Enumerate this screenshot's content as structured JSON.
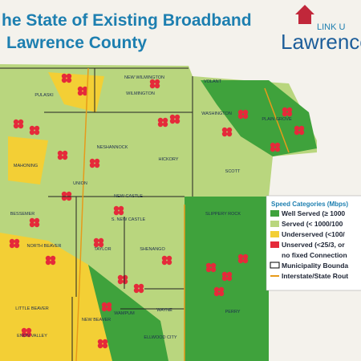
{
  "header": {
    "title_line1": "he State of Existing Broadband",
    "title_line2": "Lawrence County",
    "logo_tag": "LINK U",
    "logo_name": "Lawrence"
  },
  "legend": {
    "title": "Speed Categories (Mbps)",
    "items": [
      "Well Served (≥ 1000",
      "Served (< 1000/100",
      "Underserved (<100/",
      "Unserved (<25/3, or",
      "no fixed Connection",
      "Municipality Bounda",
      "Interstate/State Rout"
    ]
  },
  "municipalities": [
    "NEW WILMINGTON",
    "WILMINGTON",
    "VOLANT",
    "PLAIN GROVE",
    "WASHINGTON",
    "PULASKI",
    "NESHANNOCK",
    "HICKORY",
    "MAHONING",
    "UNION",
    "NEW CASTLE",
    "SCOTT",
    "BESSEMER",
    "S. NEW CASTLE",
    "NORTH BEAVER",
    "TAYLOR",
    "SHENANGO",
    "SLIPPERY ROCK",
    "LITTLE BEAVER",
    "WAMPUM",
    "WAYNE",
    "NEW BEAVER",
    "ELLWOOD CITY",
    "ENON VALLEY",
    "PERRY"
  ]
}
